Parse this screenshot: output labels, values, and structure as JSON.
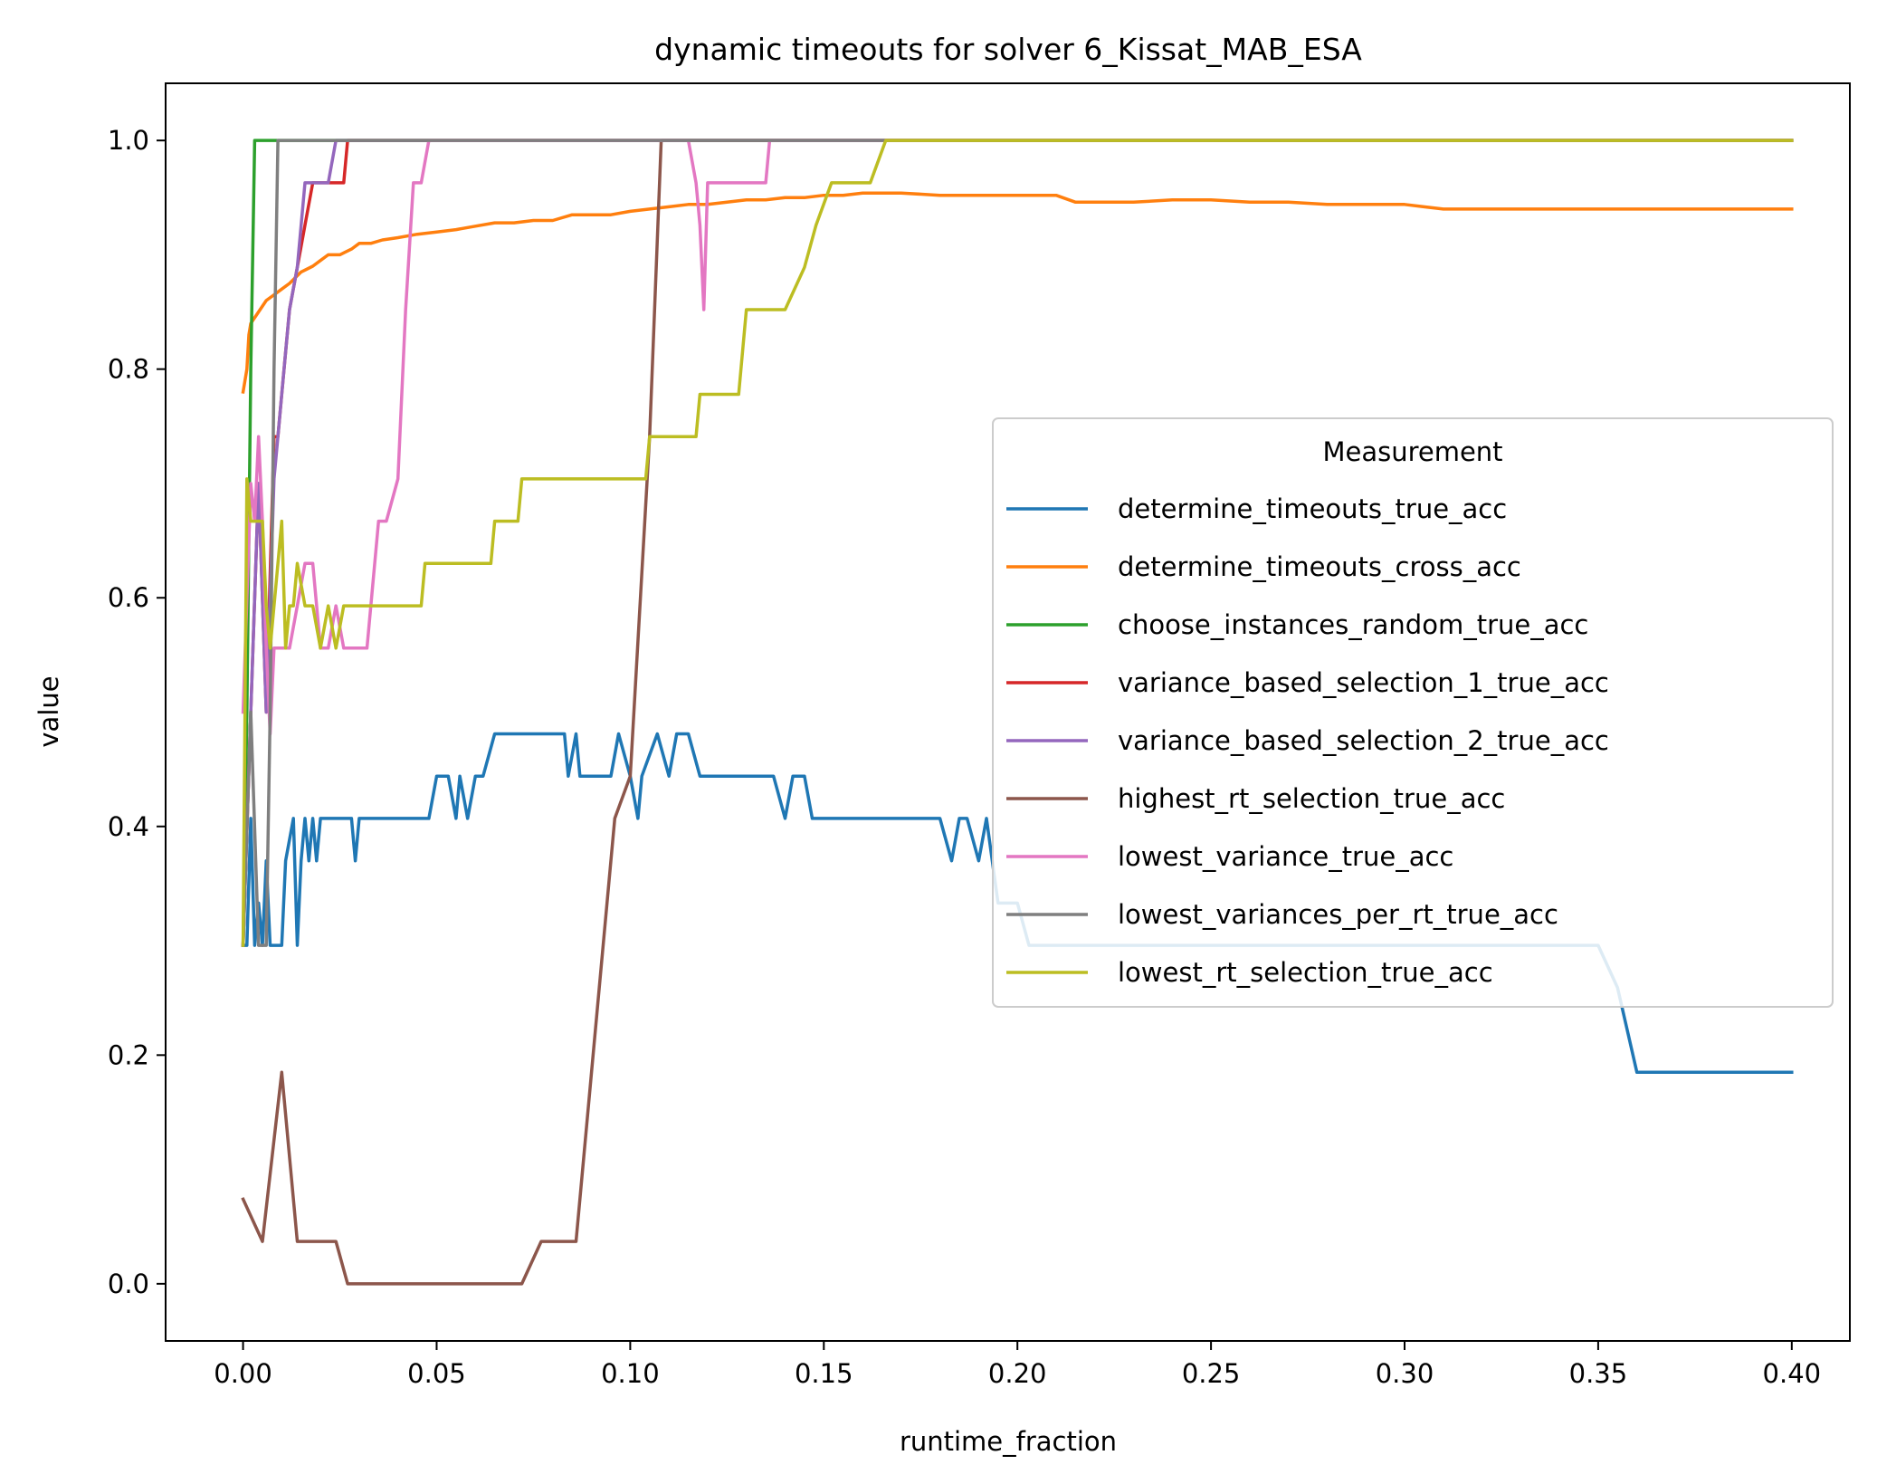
{
  "chart_data": {
    "type": "line",
    "title": "dynamic timeouts for solver 6_Kissat_MAB_ESA",
    "xlabel": "runtime_fraction",
    "ylabel": "value",
    "xlim": [
      -0.02,
      0.415
    ],
    "ylim": [
      -0.05,
      1.05
    ],
    "xticks": [
      0.0,
      0.05,
      0.1,
      0.15,
      0.2,
      0.25,
      0.3,
      0.35,
      0.4
    ],
    "xtick_labels": [
      "0.00",
      "0.05",
      "0.10",
      "0.15",
      "0.20",
      "0.25",
      "0.30",
      "0.35",
      "0.40"
    ],
    "yticks": [
      0.0,
      0.2,
      0.4,
      0.6,
      0.8,
      1.0
    ],
    "ytick_labels": [
      "0.0",
      "0.2",
      "0.4",
      "0.6",
      "0.8",
      "1.0"
    ],
    "grid": false,
    "legend": {
      "title": "Measurement",
      "placement": "center-right"
    },
    "series": [
      {
        "name": "determine_timeouts_true_acc",
        "color": "#1f77b4",
        "x": [
          0.0,
          0.001,
          0.002,
          0.003,
          0.004,
          0.005,
          0.006,
          0.007,
          0.008,
          0.01,
          0.011,
          0.013,
          0.014,
          0.015,
          0.016,
          0.017,
          0.018,
          0.019,
          0.02,
          0.021,
          0.024,
          0.028,
          0.029,
          0.03,
          0.04,
          0.048,
          0.05,
          0.051,
          0.053,
          0.055,
          0.056,
          0.058,
          0.06,
          0.062,
          0.065,
          0.07,
          0.075,
          0.083,
          0.084,
          0.086,
          0.087,
          0.09,
          0.095,
          0.097,
          0.1,
          0.102,
          0.103,
          0.107,
          0.11,
          0.112,
          0.115,
          0.118,
          0.12,
          0.125,
          0.13,
          0.135,
          0.137,
          0.14,
          0.142,
          0.145,
          0.147,
          0.15,
          0.165,
          0.17,
          0.18,
          0.183,
          0.185,
          0.187,
          0.19,
          0.192,
          0.195,
          0.2,
          0.203,
          0.25,
          0.3,
          0.35,
          0.355,
          0.36,
          0.4
        ],
        "y": [
          0.296,
          0.296,
          0.407,
          0.296,
          0.333,
          0.296,
          0.37,
          0.296,
          0.296,
          0.296,
          0.37,
          0.407,
          0.296,
          0.37,
          0.407,
          0.37,
          0.407,
          0.37,
          0.407,
          0.407,
          0.407,
          0.407,
          0.37,
          0.407,
          0.407,
          0.407,
          0.444,
          0.444,
          0.444,
          0.407,
          0.444,
          0.407,
          0.444,
          0.444,
          0.481,
          0.481,
          0.481,
          0.481,
          0.444,
          0.481,
          0.444,
          0.444,
          0.444,
          0.481,
          0.444,
          0.407,
          0.444,
          0.481,
          0.444,
          0.481,
          0.481,
          0.444,
          0.444,
          0.444,
          0.444,
          0.444,
          0.444,
          0.407,
          0.444,
          0.444,
          0.407,
          0.407,
          0.407,
          0.407,
          0.407,
          0.37,
          0.407,
          0.407,
          0.37,
          0.407,
          0.333,
          0.333,
          0.296,
          0.296,
          0.296,
          0.296,
          0.259,
          0.185,
          0.185
        ]
      },
      {
        "name": "determine_timeouts_cross_acc",
        "color": "#ff7f0e",
        "x": [
          0.0,
          0.0005,
          0.001,
          0.0015,
          0.002,
          0.003,
          0.004,
          0.006,
          0.008,
          0.01,
          0.012,
          0.015,
          0.018,
          0.02,
          0.022,
          0.025,
          0.028,
          0.03,
          0.033,
          0.036,
          0.04,
          0.045,
          0.05,
          0.055,
          0.06,
          0.065,
          0.07,
          0.075,
          0.08,
          0.085,
          0.09,
          0.095,
          0.1,
          0.105,
          0.11,
          0.115,
          0.12,
          0.125,
          0.13,
          0.135,
          0.14,
          0.145,
          0.15,
          0.155,
          0.16,
          0.165,
          0.17,
          0.18,
          0.19,
          0.2,
          0.21,
          0.215,
          0.22,
          0.23,
          0.24,
          0.25,
          0.26,
          0.27,
          0.28,
          0.29,
          0.3,
          0.305,
          0.31,
          0.35,
          0.4
        ],
        "y": [
          0.78,
          0.79,
          0.8,
          0.83,
          0.84,
          0.845,
          0.85,
          0.86,
          0.865,
          0.87,
          0.875,
          0.885,
          0.89,
          0.895,
          0.9,
          0.9,
          0.905,
          0.91,
          0.91,
          0.913,
          0.915,
          0.918,
          0.92,
          0.922,
          0.925,
          0.928,
          0.928,
          0.93,
          0.93,
          0.935,
          0.935,
          0.935,
          0.938,
          0.94,
          0.942,
          0.944,
          0.944,
          0.946,
          0.948,
          0.948,
          0.95,
          0.95,
          0.952,
          0.952,
          0.954,
          0.954,
          0.954,
          0.952,
          0.952,
          0.952,
          0.952,
          0.946,
          0.946,
          0.946,
          0.948,
          0.948,
          0.946,
          0.946,
          0.944,
          0.944,
          0.944,
          0.942,
          0.94,
          0.94,
          0.94
        ]
      },
      {
        "name": "choose_instances_random_true_acc",
        "color": "#2ca02c",
        "x": [
          0.0,
          0.001,
          0.002,
          0.003,
          0.008,
          0.4
        ],
        "y": [
          0.296,
          0.5,
          0.8,
          1.0,
          1.0,
          1.0
        ]
      },
      {
        "name": "variance_based_selection_1_true_acc",
        "color": "#d62728",
        "x": [
          0.0,
          0.002,
          0.004,
          0.006,
          0.008,
          0.009,
          0.01,
          0.012,
          0.014,
          0.016,
          0.018,
          0.02,
          0.022,
          0.024,
          0.026,
          0.027,
          0.03,
          0.4
        ],
        "y": [
          0.296,
          0.5,
          0.7,
          0.5,
          0.741,
          0.741,
          0.778,
          0.852,
          0.889,
          0.926,
          0.963,
          0.963,
          0.963,
          0.963,
          0.963,
          1.0,
          1.0,
          1.0
        ]
      },
      {
        "name": "variance_based_selection_2_true_acc",
        "color": "#9467bd",
        "x": [
          0.0,
          0.002,
          0.004,
          0.006,
          0.008,
          0.009,
          0.01,
          0.012,
          0.014,
          0.016,
          0.018,
          0.02,
          0.022,
          0.024,
          0.4
        ],
        "y": [
          0.296,
          0.5,
          0.7,
          0.5,
          0.704,
          0.741,
          0.778,
          0.852,
          0.889,
          0.963,
          0.963,
          0.963,
          0.963,
          1.0,
          1.0
        ]
      },
      {
        "name": "highest_rt_selection_true_acc",
        "color": "#8c564b",
        "x": [
          0.0,
          0.005,
          0.01,
          0.014,
          0.024,
          0.027,
          0.072,
          0.077,
          0.086,
          0.09,
          0.096,
          0.1,
          0.105,
          0.108,
          0.4
        ],
        "y": [
          0.074,
          0.037,
          0.185,
          0.037,
          0.037,
          0.0,
          0.0,
          0.037,
          0.037,
          0.185,
          0.407,
          0.444,
          0.741,
          1.0,
          1.0
        ]
      },
      {
        "name": "lowest_variance_true_acc",
        "color": "#e377c2",
        "x": [
          0.0,
          0.002,
          0.003,
          0.004,
          0.005,
          0.006,
          0.007,
          0.008,
          0.01,
          0.012,
          0.014,
          0.016,
          0.018,
          0.02,
          0.022,
          0.024,
          0.026,
          0.028,
          0.03,
          0.032,
          0.035,
          0.037,
          0.04,
          0.042,
          0.044,
          0.046,
          0.048,
          0.05,
          0.115,
          0.117,
          0.118,
          0.119,
          0.12,
          0.122,
          0.13,
          0.135,
          0.136,
          0.4
        ],
        "y": [
          0.5,
          0.7,
          0.667,
          0.741,
          0.667,
          0.556,
          0.481,
          0.556,
          0.556,
          0.556,
          0.593,
          0.63,
          0.63,
          0.556,
          0.556,
          0.593,
          0.556,
          0.556,
          0.556,
          0.556,
          0.667,
          0.667,
          0.704,
          0.852,
          0.963,
          0.963,
          1.0,
          1.0,
          1.0,
          0.963,
          0.926,
          0.852,
          0.963,
          0.963,
          0.963,
          0.963,
          1.0,
          1.0
        ]
      },
      {
        "name": "lowest_variances_per_rt_true_acc",
        "color": "#7f7f7f",
        "x": [
          0.0,
          0.002,
          0.004,
          0.005,
          0.006,
          0.007,
          0.008,
          0.009,
          0.4
        ],
        "y": [
          0.296,
          0.5,
          0.296,
          0.296,
          0.296,
          0.5,
          0.8,
          1.0,
          1.0
        ]
      },
      {
        "name": "lowest_rt_selection_true_acc",
        "color": "#bcbd22",
        "x": [
          0.0,
          0.001,
          0.002,
          0.003,
          0.004,
          0.005,
          0.006,
          0.007,
          0.008,
          0.009,
          0.01,
          0.011,
          0.012,
          0.013,
          0.014,
          0.016,
          0.018,
          0.02,
          0.022,
          0.024,
          0.026,
          0.028,
          0.03,
          0.034,
          0.04,
          0.046,
          0.047,
          0.06,
          0.064,
          0.065,
          0.071,
          0.072,
          0.095,
          0.104,
          0.105,
          0.117,
          0.118,
          0.128,
          0.13,
          0.135,
          0.14,
          0.145,
          0.148,
          0.152,
          0.16,
          0.162,
          0.166,
          0.168,
          0.4
        ],
        "y": [
          0.296,
          0.704,
          0.667,
          0.667,
          0.667,
          0.667,
          0.593,
          0.556,
          0.593,
          0.63,
          0.667,
          0.556,
          0.593,
          0.593,
          0.63,
          0.593,
          0.593,
          0.556,
          0.593,
          0.556,
          0.593,
          0.593,
          0.593,
          0.593,
          0.593,
          0.593,
          0.63,
          0.63,
          0.63,
          0.667,
          0.667,
          0.704,
          0.704,
          0.704,
          0.741,
          0.741,
          0.778,
          0.778,
          0.852,
          0.852,
          0.852,
          0.889,
          0.926,
          0.963,
          0.963,
          0.963,
          1.0,
          1.0,
          1.0
        ]
      }
    ]
  }
}
